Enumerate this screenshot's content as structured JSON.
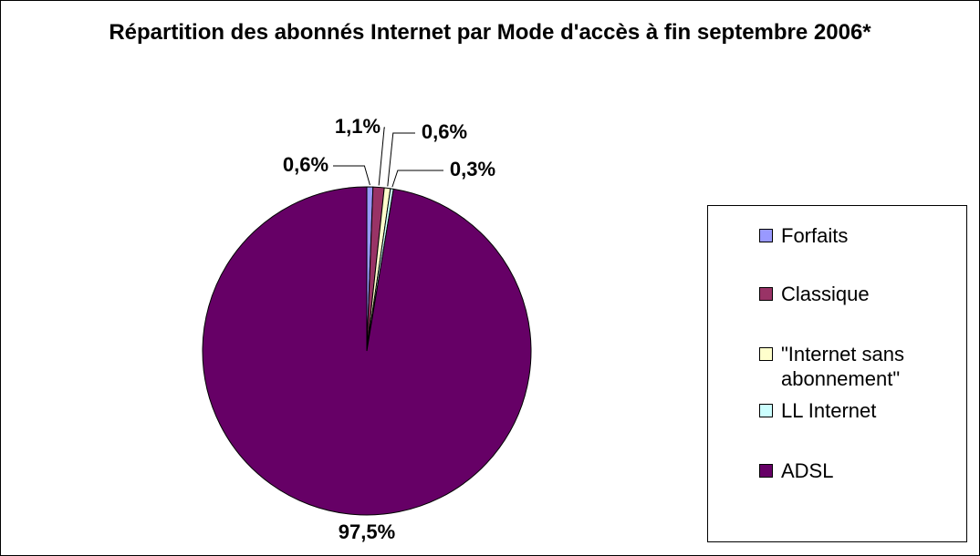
{
  "chart_data": {
    "type": "pie",
    "title": "Répartition des abonnés Internet par Mode d'accès à fin septembre 2006*",
    "categories": [
      "Forfaits",
      "Classique",
      "\"Internet sans abonnement\"",
      "LL Internet",
      "ADSL"
    ],
    "values": [
      0.6,
      1.1,
      0.6,
      0.3,
      97.5
    ],
    "value_labels": [
      "0,6%",
      "1,1%",
      "0,6%",
      "0,3%",
      "97,5%"
    ],
    "colors": [
      "#9999ff",
      "#993366",
      "#ffffcc",
      "#ccffff",
      "#660066"
    ],
    "legend": "right"
  }
}
